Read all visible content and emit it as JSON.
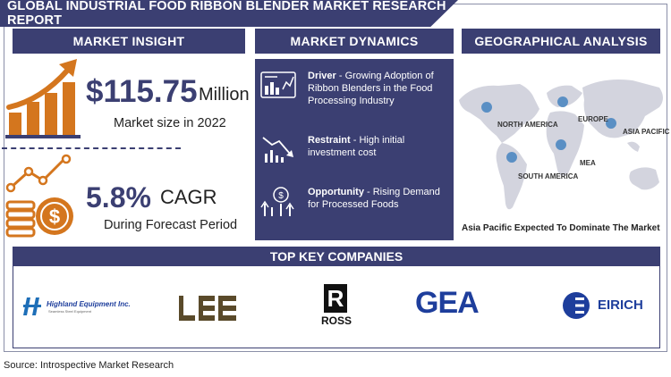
{
  "title": "GLOBAL INDUSTRIAL FOOD RIBBON BLENDER MARKET RESEARCH REPORT",
  "sections": {
    "insight": "MARKET INSIGHT",
    "dynamics": "MARKET DYNAMICS",
    "geo": "GEOGRAPHICAL ANALYSIS",
    "companies": "TOP KEY COMPANIES"
  },
  "insight": {
    "market_size": "$115.75",
    "unit": "Million",
    "market_size_label": "Market size in 2022",
    "cagr": "5.8%",
    "cagr_label": "CAGR",
    "cagr_period": "During Forecast Period"
  },
  "dynamics": [
    {
      "label": "Driver",
      "text": " - Growing Adoption of Ribbon Blenders in the Food Processing Industry",
      "icon": "chart-report-icon"
    },
    {
      "label": "Restraint",
      "text": " - High initial investment cost",
      "icon": "declining-chart-icon"
    },
    {
      "label": "Opportunity",
      "text": " - Rising Demand for Processed Foods",
      "icon": "growth-coin-icon"
    }
  ],
  "regions": [
    "NORTH AMERICA",
    "EUROPE",
    "ASIA PACIFIC",
    "MEA",
    "SOUTH AMERICA"
  ],
  "geo_note": "Asia Pacific Expected To Dominate The Market",
  "companies": {
    "highland": "Highland Equipment Inc.",
    "highland_sub": "Seamless Steel Equipment",
    "lee": "LEE",
    "ross": "ROSS",
    "ross_mark": "R",
    "gea": "GEA",
    "eirich": "EIRICH"
  },
  "source": "Source: Introspective Market Research",
  "colors": {
    "navy": "#3b3f72",
    "orange": "#d4761e",
    "blue": "#1e3e9c",
    "map": "#d3d4de",
    "pin": "#5a8fc4"
  }
}
